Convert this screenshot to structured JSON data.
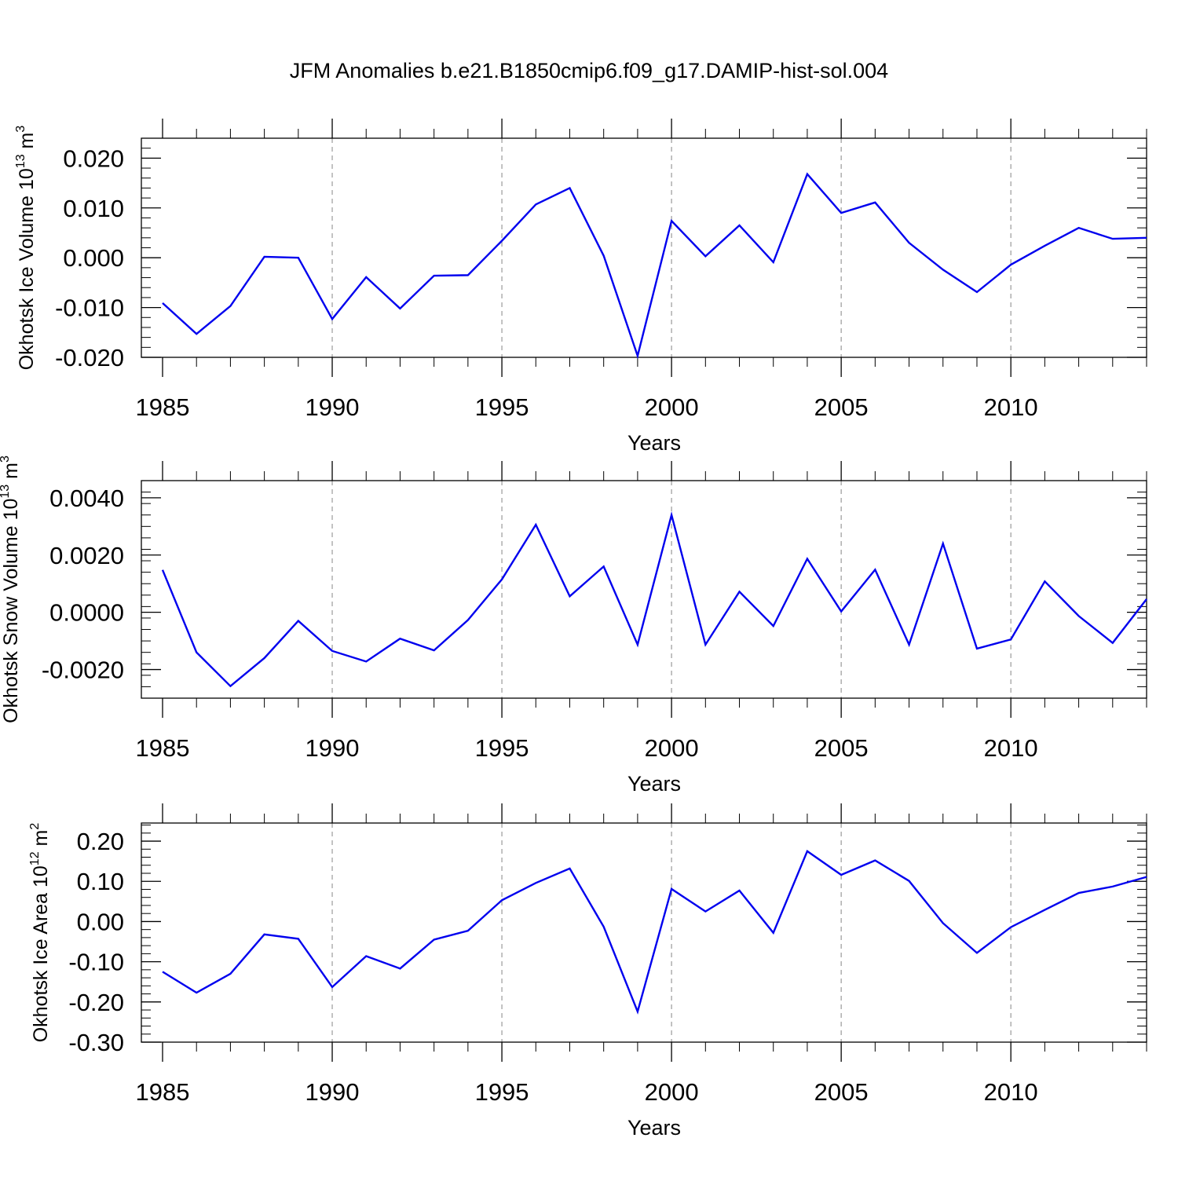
{
  "chart_data": [
    {
      "type": "line",
      "title": "JFM Anomalies b.e21.B1850cmip6.f09_g17.DAMIP-hist-sol.004",
      "xlabel": "Years",
      "ylabel": {
        "base": "Okhotsk Ice Volume 10",
        "exp": "13",
        "unit": " m",
        "unit_exp": "3"
      },
      "xlim": [
        1985,
        2014
      ],
      "ylim": [
        -0.02,
        0.024
      ],
      "xticks": [
        1985,
        1990,
        1995,
        2000,
        2005,
        2010
      ],
      "xtick_labels": [
        "1985",
        "1990",
        "1995",
        "2000",
        "2005",
        "2010"
      ],
      "yticks": [
        -0.02,
        -0.01,
        0.0,
        0.01,
        0.02
      ],
      "ytick_labels": [
        "-0.020",
        "-0.010",
        "0.000",
        "0.010",
        "0.020"
      ],
      "grid": "dashed vertical lines at major x ticks",
      "series": [
        {
          "name": "Okhotsk Ice Volume",
          "color": "#0000ee",
          "x": [
            1985,
            1986,
            1987,
            1988,
            1989,
            1990,
            1991,
            1992,
            1993,
            1994,
            1995,
            1996,
            1997,
            1998,
            1999,
            2000,
            2001,
            2002,
            2003,
            2004,
            2005,
            2006,
            2007,
            2008,
            2009,
            2010,
            2011,
            2012,
            2013,
            2014
          ],
          "values": [
            -0.0091,
            -0.0153,
            -0.0097,
            0.0002,
            0.0,
            -0.0123,
            -0.0039,
            -0.0102,
            -0.0036,
            -0.0035,
            0.0034,
            0.0107,
            0.014,
            0.0004,
            -0.0197,
            0.0074,
            0.0003,
            0.0065,
            -0.0009,
            0.0168,
            0.009,
            0.0111,
            0.003,
            -0.0024,
            -0.0069,
            -0.0014,
            0.0024,
            0.006,
            0.0038,
            0.004
          ]
        }
      ]
    },
    {
      "type": "line",
      "title": "",
      "xlabel": "Years",
      "ylabel": {
        "base": "Okhotsk Snow Volume 10",
        "exp": "13",
        "unit": " m",
        "unit_exp": "3"
      },
      "xlim": [
        1985,
        2014
      ],
      "ylim": [
        -0.003,
        0.0046
      ],
      "xticks": [
        1985,
        1990,
        1995,
        2000,
        2005,
        2010
      ],
      "xtick_labels": [
        "1985",
        "1990",
        "1995",
        "2000",
        "2005",
        "2010"
      ],
      "yticks": [
        -0.002,
        0.0,
        0.002,
        0.004
      ],
      "ytick_labels": [
        "-0.0020",
        "0.0000",
        "0.0020",
        "0.0040"
      ],
      "grid": "dashed vertical lines at major x ticks",
      "series": [
        {
          "name": "Okhotsk Snow Volume",
          "color": "#0000ee",
          "x": [
            1985,
            1986,
            1987,
            1988,
            1989,
            1990,
            1991,
            1992,
            1993,
            1994,
            1995,
            1996,
            1997,
            1998,
            1999,
            2000,
            2001,
            2002,
            2003,
            2004,
            2005,
            2006,
            2007,
            2008,
            2009,
            2010,
            2011,
            2012,
            2013,
            2014
          ],
          "values": [
            0.00148,
            -0.0014,
            -0.00258,
            -0.0016,
            -0.0003,
            -0.00135,
            -0.00172,
            -0.00092,
            -0.00133,
            -0.00027,
            0.00115,
            0.00306,
            0.00056,
            0.0016,
            -0.00113,
            0.0034,
            -0.00113,
            0.00072,
            -0.00048,
            0.00187,
            3e-05,
            0.00149,
            -0.00113,
            0.0024,
            -0.00127,
            -0.00095,
            0.00108,
            -0.00013,
            -0.00107,
            0.00046
          ]
        }
      ]
    },
    {
      "type": "line",
      "title": "",
      "xlabel": "Years",
      "ylabel": {
        "base": "Okhotsk Ice Area 10",
        "exp": "12",
        "unit": " m",
        "unit_exp": "2"
      },
      "xlim": [
        1985,
        2014
      ],
      "ylim": [
        -0.3,
        0.245
      ],
      "xticks": [
        1985,
        1990,
        1995,
        2000,
        2005,
        2010
      ],
      "xtick_labels": [
        "1985",
        "1990",
        "1995",
        "2000",
        "2005",
        "2010"
      ],
      "yticks": [
        -0.3,
        -0.2,
        -0.1,
        0.0,
        0.1,
        0.2
      ],
      "ytick_labels": [
        "-0.30",
        "-0.20",
        "-0.10",
        "0.00",
        "0.10",
        "0.20"
      ],
      "grid": "dashed vertical lines at major x ticks",
      "series": [
        {
          "name": "Okhotsk Ice Area",
          "color": "#0000ee",
          "x": [
            1985,
            1986,
            1987,
            1988,
            1989,
            1990,
            1991,
            1992,
            1993,
            1994,
            1995,
            1996,
            1997,
            1998,
            1999,
            2000,
            2001,
            2002,
            2003,
            2004,
            2005,
            2006,
            2007,
            2008,
            2009,
            2010,
            2011,
            2012,
            2013,
            2014
          ],
          "values": [
            -0.125,
            -0.177,
            -0.13,
            -0.032,
            -0.043,
            -0.163,
            -0.086,
            -0.117,
            -0.045,
            -0.023,
            0.053,
            0.096,
            0.132,
            -0.013,
            -0.224,
            0.081,
            0.025,
            0.077,
            -0.028,
            0.175,
            0.116,
            0.152,
            0.101,
            -0.004,
            -0.078,
            -0.014,
            0.029,
            0.071,
            0.087,
            0.111
          ]
        }
      ]
    }
  ]
}
